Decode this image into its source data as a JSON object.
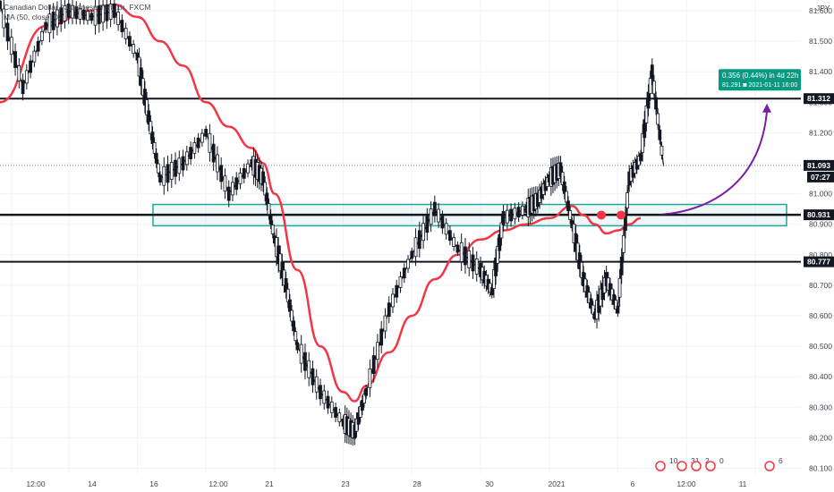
{
  "header": {
    "symbol": "Canadian Dollar / Japanese Yen, 1h, FXCM",
    "indicator": "MA (50, close, 0)"
  },
  "currency": "JPY",
  "colors": {
    "candle": "#131722",
    "ma": "#f23645",
    "zone": "#26a69a",
    "arrow": "#7b1fa2",
    "tag": "#131722",
    "measure": "#089981"
  },
  "chart_data": {
    "type": "line",
    "ylim": [
      80.05,
      81.65
    ],
    "y_ticks": [
      "81.600",
      "81.500",
      "81.400",
      "81.300",
      "81.200",
      "81.100",
      "81.000",
      "80.900",
      "80.800",
      "80.700",
      "80.600",
      "80.500",
      "80.400",
      "80.300",
      "80.200",
      "80.100"
    ],
    "y_tick_values": [
      81.6,
      81.5,
      81.4,
      81.3,
      81.2,
      81.1,
      81.0,
      80.9,
      80.8,
      80.7,
      80.6,
      80.5,
      80.4,
      80.3,
      80.2,
      80.1
    ],
    "x_ticks": [
      "12:00",
      "14",
      "16",
      "12:00",
      "21",
      "23",
      "28",
      "30",
      "2021",
      "6",
      "12:00",
      "11"
    ],
    "x_tick_positions": [
      0.5,
      3,
      6,
      9,
      12,
      15,
      18,
      21,
      24,
      27,
      30,
      33
    ],
    "xlim": [
      0,
      35
    ],
    "price_series": {
      "name": "CADJPY",
      "x": [
        0,
        1,
        2,
        3,
        4,
        5,
        6,
        6.5,
        7,
        8,
        9,
        10,
        11,
        11.5,
        12,
        12.5,
        13,
        14,
        15,
        15.5,
        16,
        17,
        18,
        19,
        20,
        21,
        21.5,
        22,
        23,
        23.5,
        24,
        24.5,
        25,
        25.5,
        26,
        26.5,
        27,
        27.5,
        28,
        28.5,
        29
      ],
      "y": [
        81.62,
        81.35,
        81.55,
        81.6,
        81.58,
        81.6,
        81.45,
        81.25,
        81.05,
        81.1,
        81.2,
        81.0,
        81.1,
        81.05,
        80.85,
        80.7,
        80.5,
        80.35,
        80.25,
        80.22,
        80.35,
        80.62,
        80.8,
        80.95,
        80.82,
        80.75,
        80.68,
        80.92,
        80.95,
        80.98,
        81.05,
        81.08,
        80.9,
        80.72,
        80.6,
        80.72,
        80.62,
        81.05,
        81.12,
        81.4,
        81.09
      ]
    },
    "ma_series": {
      "name": "MA (50, close, 0)",
      "x": [
        0,
        2,
        4,
        5,
        6,
        7,
        8,
        9,
        10,
        11,
        11.5,
        12,
        13,
        14,
        15,
        15.5,
        16,
        17,
        18,
        19,
        20,
        21,
        22,
        23,
        24,
        25,
        25.5,
        26,
        26.5,
        27,
        27.5,
        28
      ],
      "y": [
        81.3,
        81.55,
        81.6,
        81.62,
        81.58,
        81.5,
        81.42,
        81.3,
        81.22,
        81.15,
        81.1,
        81.0,
        80.75,
        80.5,
        80.35,
        80.32,
        80.37,
        80.48,
        80.6,
        80.72,
        80.8,
        80.85,
        80.88,
        80.9,
        80.92,
        80.96,
        80.93,
        80.9,
        80.87,
        80.88,
        80.9,
        80.92
      ]
    },
    "horizontal_lines": [
      81.312,
      80.931,
      80.777
    ],
    "zone": {
      "low": 80.895,
      "high": 80.965
    },
    "current_price": 81.093,
    "countdown": "07:27",
    "price_tags": [
      {
        "label": "81.312",
        "value": 81.312
      },
      {
        "label": "81.093",
        "value": 81.093
      },
      {
        "label": "80.931",
        "value": 80.931
      },
      {
        "label": "80.777",
        "value": 80.777
      }
    ],
    "measurement": {
      "line1": "0.356 (0.44%) in 4d 22h",
      "line2": "81.291  ◙ 2021-01-11  16:00"
    },
    "event_markers": [
      "10",
      "31",
      "2",
      "0",
      "6"
    ]
  }
}
